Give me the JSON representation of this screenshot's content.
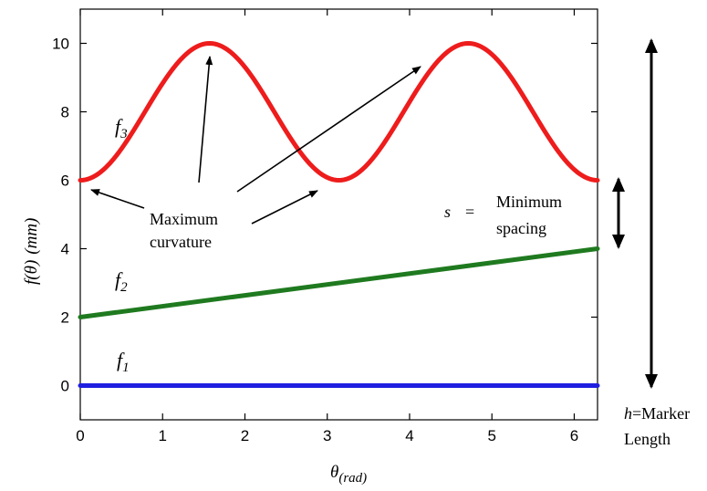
{
  "chart_data": {
    "type": "line",
    "xlabel_main": "θ",
    "xlabel_sub": "(rad)",
    "ylabel_func": "f(θ)",
    "ylabel_unit": "(mm)",
    "xlim": [
      0,
      6.283
    ],
    "ylim": [
      -1,
      11
    ],
    "xticks": [
      0,
      1,
      2,
      3,
      4,
      5,
      6
    ],
    "yticks": [
      0,
      2,
      4,
      6,
      8,
      10
    ],
    "grid": false,
    "series": [
      {
        "name": "f1",
        "base": "f",
        "sub": "1",
        "color": "#1f1fe0",
        "formula": "0",
        "x": [
          0,
          6.283
        ],
        "y": [
          0,
          0
        ]
      },
      {
        "name": "f2",
        "base": "f",
        "sub": "2",
        "color": "#1f7a1f",
        "formula": "2 + x/π",
        "x": [
          0,
          6.283
        ],
        "y": [
          2,
          4
        ]
      },
      {
        "name": "f3",
        "base": "f",
        "sub": "3",
        "color": "#ee1c1c",
        "formula": "8 - 2cos(2x)",
        "x": [
          0,
          0.785,
          1.571,
          2.356,
          3.142,
          3.927,
          4.712,
          5.498,
          6.283
        ],
        "y": [
          6,
          8,
          10,
          8,
          6,
          8,
          10,
          8,
          6
        ]
      }
    ],
    "annotations": {
      "max_curvature_line1": "Maximum",
      "max_curvature_line2": "curvature",
      "s_symbol": "s",
      "s_equals": "=",
      "s_text_line1": "Minimum",
      "s_text_line2": "spacing",
      "h_symbol": "h",
      "h_text_line1": "=Marker",
      "h_text_line2": "Length"
    }
  }
}
